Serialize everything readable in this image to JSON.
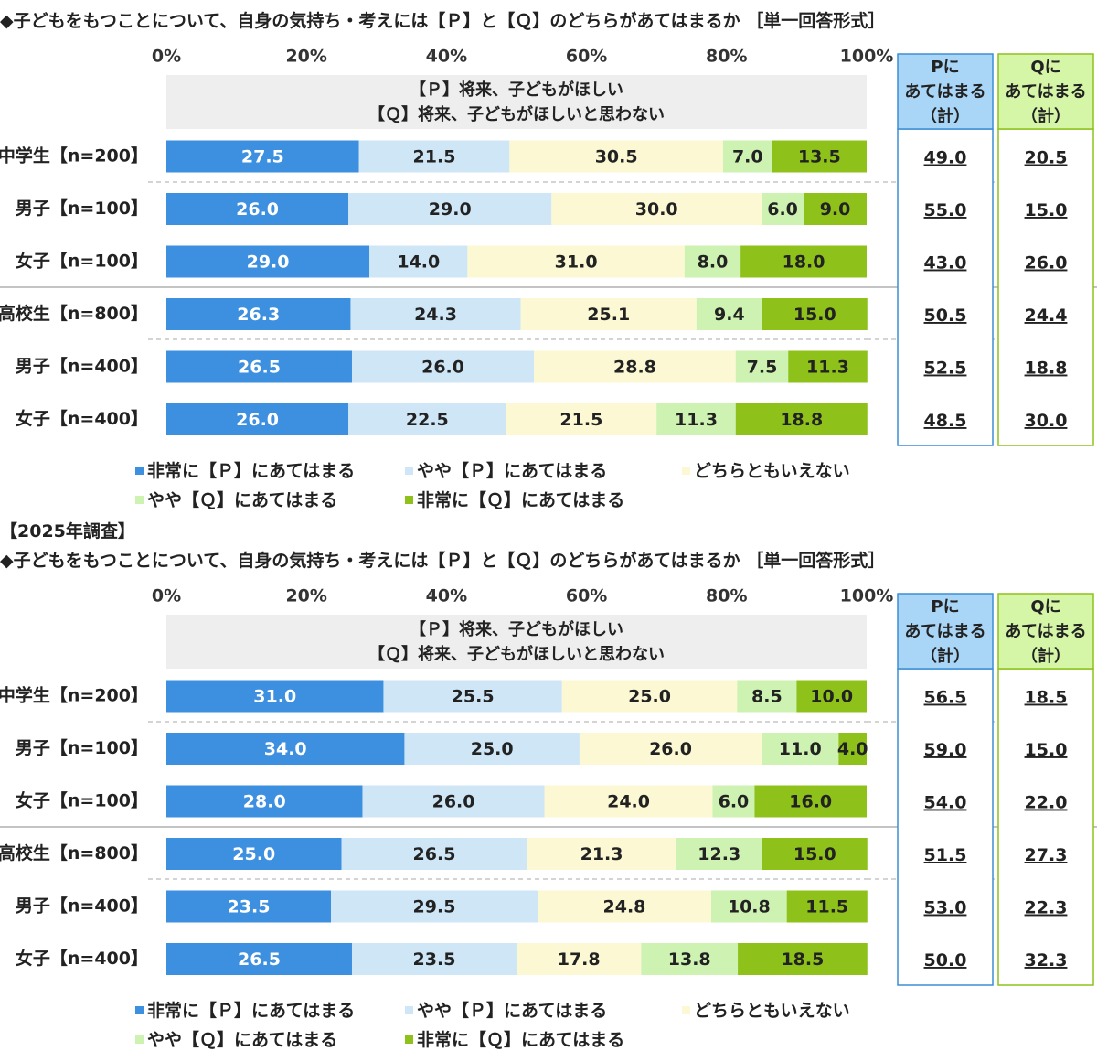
{
  "survey_label": "【2025年調査】",
  "shared": {
    "question": "◆子どもをもつことについて、自身の気持ち・考えには【Ｐ】と【Ｑ】のどちらがあてはまるか ［単一回答形式］",
    "header_p": "【Ｐ】将来、子どもがほしい",
    "header_q": "【Ｑ】将来、子どもがほしいと思わない",
    "sum_p_label": [
      "Pに",
      "あてはまる",
      "（計）"
    ],
    "sum_q_label": [
      "Qに",
      "あてはまる",
      "（計）"
    ],
    "ticks": [
      "0%",
      "20%",
      "40%",
      "60%",
      "80%",
      "100%"
    ],
    "legend": [
      {
        "label": "非常に【Ｐ】にあてはまる",
        "color": "#3d8fe0"
      },
      {
        "label": "やや【Ｐ】にあてはまる",
        "color": "#cfe6f7"
      },
      {
        "label": "どちらともいえない",
        "color": "#fbf8d3"
      },
      {
        "label": "やや【Ｑ】にあてはまる",
        "color": "#cdf2b2"
      },
      {
        "label": "非常に【Ｑ】にあてはまる",
        "color": "#8ec21b"
      }
    ],
    "colors": {
      "sum_p_fill": "#a9d5f7",
      "sum_p_border": "#3b8ed6",
      "sum_q_fill": "#d5f5a7",
      "sum_q_border": "#8ec21b",
      "header_fill": "#eeeeee"
    }
  },
  "chart_data": [
    {
      "type": "bar",
      "stacked": true,
      "orientation": "horizontal",
      "xlim": [
        0,
        100
      ],
      "categories": [
        "中学生【n=200】",
        "男子【n=100】",
        "女子【n=100】",
        "高校生【n=800】",
        "男子【n=400】",
        "女子【n=400】"
      ],
      "series": [
        {
          "name": "非常に【Ｐ】にあてはまる",
          "values": [
            27.5,
            26.0,
            29.0,
            26.3,
            26.5,
            26.0
          ]
        },
        {
          "name": "やや【Ｐ】にあてはまる",
          "values": [
            21.5,
            29.0,
            14.0,
            24.3,
            26.0,
            22.5
          ]
        },
        {
          "name": "どちらともいえない",
          "values": [
            30.5,
            30.0,
            31.0,
            25.1,
            28.8,
            21.5
          ]
        },
        {
          "name": "やや【Ｑ】にあてはまる",
          "values": [
            7.0,
            6.0,
            8.0,
            9.4,
            7.5,
            11.3
          ]
        },
        {
          "name": "非常に【Ｑ】にあてはまる",
          "values": [
            13.5,
            9.0,
            18.0,
            15.0,
            11.3,
            18.8
          ]
        }
      ],
      "sum_p": [
        49.0,
        55.0,
        43.0,
        50.5,
        52.5,
        48.5
      ],
      "sum_q": [
        20.5,
        15.0,
        26.0,
        24.4,
        18.8,
        30.0
      ]
    },
    {
      "type": "bar",
      "stacked": true,
      "orientation": "horizontal",
      "xlim": [
        0,
        100
      ],
      "categories": [
        "中学生【n=200】",
        "男子【n=100】",
        "女子【n=100】",
        "高校生【n=800】",
        "男子【n=400】",
        "女子【n=400】"
      ],
      "series": [
        {
          "name": "非常に【Ｐ】にあてはまる",
          "values": [
            31.0,
            34.0,
            28.0,
            25.0,
            23.5,
            26.5
          ]
        },
        {
          "name": "やや【Ｐ】にあてはまる",
          "values": [
            25.5,
            25.0,
            26.0,
            26.5,
            29.5,
            23.5
          ]
        },
        {
          "name": "どちらともいえない",
          "values": [
            25.0,
            26.0,
            24.0,
            21.3,
            24.8,
            17.8
          ]
        },
        {
          "name": "やや【Ｑ】にあてはまる",
          "values": [
            8.5,
            11.0,
            6.0,
            12.3,
            10.8,
            13.8
          ]
        },
        {
          "name": "非常に【Ｑ】にあてはまる",
          "values": [
            10.0,
            4.0,
            16.0,
            15.0,
            11.5,
            18.5
          ]
        }
      ],
      "sum_p": [
        56.5,
        59.0,
        54.0,
        51.5,
        53.0,
        50.0
      ],
      "sum_q": [
        18.5,
        15.0,
        22.0,
        27.3,
        22.3,
        32.3
      ]
    }
  ]
}
